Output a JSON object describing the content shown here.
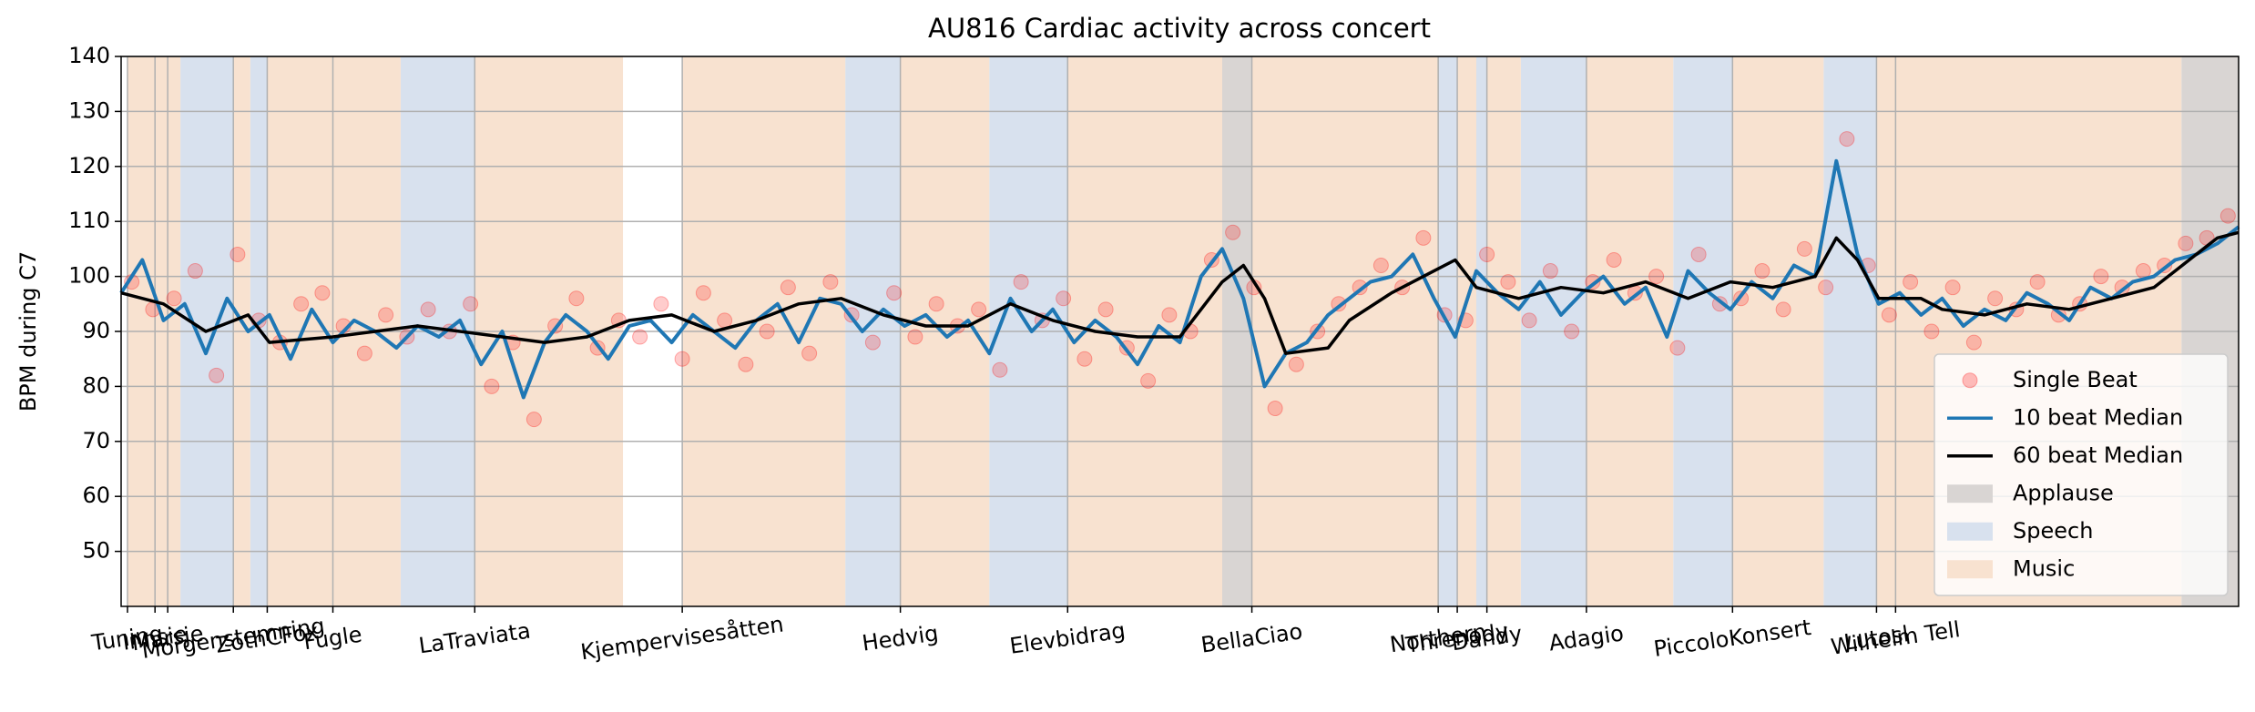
{
  "chart_data": {
    "type": "line",
    "title": "AU816 Cardiac activity across concert",
    "y_label": "BPM during C7",
    "xlim": [
      0,
      100
    ],
    "ylim": [
      40,
      140
    ],
    "yticks": [
      50,
      60,
      70,
      80,
      90,
      100,
      110,
      120,
      130,
      140
    ],
    "xticks": [
      {
        "value": 0.3,
        "label": "Tuning"
      },
      {
        "value": 1.6,
        "label": "Innsie"
      },
      {
        "value": 2.2,
        "label": "Marsje"
      },
      {
        "value": 5.3,
        "label": "Morgenstemning"
      },
      {
        "value": 6.9,
        "label": "ZothCFox"
      },
      {
        "value": 10.0,
        "label": "Fugle"
      },
      {
        "value": 16.7,
        "label": "LaTraviata"
      },
      {
        "value": 26.5,
        "label": "Kjempervisesåtten"
      },
      {
        "value": 36.8,
        "label": "Hedvig"
      },
      {
        "value": 44.7,
        "label": "Elevbidrag"
      },
      {
        "value": 53.4,
        "label": "BellaCiao"
      },
      {
        "value": 62.2,
        "label": "Northern"
      },
      {
        "value": 63.1,
        "label": "Threnody"
      },
      {
        "value": 64.5,
        "label": "Dandy"
      },
      {
        "value": 69.2,
        "label": "Adagio"
      },
      {
        "value": 76.1,
        "label": "PiccoloKonsert"
      },
      {
        "value": 82.9,
        "label": "Lutosl"
      },
      {
        "value": 83.8,
        "label": "Wilhelm Tell"
      }
    ],
    "grid": true,
    "legend_position": "lower right",
    "spans": [
      {
        "name": "Applause",
        "color": "#d9d5d3",
        "ranges": [
          [
            52.0,
            53.4
          ],
          [
            97.3,
            100
          ]
        ]
      },
      {
        "name": "Speech",
        "color": "#d8e1ee",
        "ranges": [
          [
            2.8,
            5.3
          ],
          [
            6.1,
            6.9
          ],
          [
            13.2,
            16.7
          ],
          [
            34.2,
            36.8
          ],
          [
            41.0,
            44.7
          ],
          [
            62.2,
            63.1
          ],
          [
            64.0,
            64.5
          ],
          [
            66.1,
            69.2
          ],
          [
            73.3,
            76.1
          ],
          [
            80.4,
            82.9
          ]
        ]
      },
      {
        "name": "Music",
        "color": "#f8e2d0",
        "ranges": [
          [
            0.3,
            1.6
          ],
          [
            1.6,
            2.8
          ],
          [
            5.3,
            6.1
          ],
          [
            6.9,
            13.2
          ],
          [
            16.7,
            23.7
          ],
          [
            26.5,
            34.2
          ],
          [
            36.8,
            41.0
          ],
          [
            44.7,
            52.0
          ],
          [
            53.4,
            62.2
          ],
          [
            63.1,
            64.0
          ],
          [
            64.5,
            66.1
          ],
          [
            69.2,
            73.3
          ],
          [
            76.1,
            80.4
          ],
          [
            82.9,
            97.3
          ]
        ]
      }
    ],
    "series": [
      {
        "name": "Single Beat",
        "type": "scatter",
        "color": "#ff0000",
        "x": [
          0.5,
          1.5,
          2.5,
          3.5,
          4.5,
          5.5,
          6.5,
          7.5,
          8.5,
          9.5,
          10.5,
          11.5,
          12.5,
          13.5,
          14.5,
          15.5,
          16.5,
          17.5,
          18.5,
          19.5,
          20.5,
          21.5,
          22.5,
          23.5,
          24.5,
          25.5,
          26.5,
          27.5,
          28.5,
          29.5,
          30.5,
          31.5,
          32.5,
          33.5,
          34.5,
          35.5,
          36.5,
          37.5,
          38.5,
          39.5,
          40.5,
          41.5,
          42.5,
          43.5,
          44.5,
          45.5,
          46.5,
          47.5,
          48.5,
          49.5,
          50.5,
          51.5,
          52.5,
          53.5,
          54.5,
          55.5,
          56.5,
          57.5,
          58.5,
          59.5,
          60.5,
          61.5,
          62.5,
          63.5,
          64.5,
          65.5,
          66.5,
          67.5,
          68.5,
          69.5,
          70.5,
          71.5,
          72.5,
          73.5,
          74.5,
          75.5,
          76.5,
          77.5,
          78.5,
          79.5,
          80.5,
          81.5,
          82.5,
          83.5,
          84.5,
          85.5,
          86.5,
          87.5,
          88.5,
          89.5,
          90.5,
          91.5,
          92.5,
          93.5,
          94.5,
          95.5,
          96.5,
          97.5,
          98.5,
          99.5
        ],
        "values": [
          99,
          94,
          96,
          101,
          82,
          104,
          92,
          88,
          95,
          97,
          91,
          86,
          93,
          89,
          94,
          90,
          95,
          80,
          88,
          74,
          91,
          96,
          87,
          92,
          89,
          95,
          85,
          97,
          92,
          84,
          90,
          98,
          86,
          99,
          93,
          88,
          97,
          89,
          95,
          91,
          94,
          83,
          99,
          92,
          96,
          85,
          94,
          87,
          81,
          93,
          90,
          103,
          108,
          98,
          76,
          84,
          90,
          95,
          98,
          102,
          98,
          107,
          93,
          92,
          104,
          99,
          92,
          101,
          90,
          99,
          103,
          97,
          100,
          87,
          104,
          95,
          96,
          101,
          94,
          105,
          98,
          125,
          102,
          93,
          99,
          90,
          98,
          88,
          96,
          94,
          99,
          93,
          95,
          100,
          98,
          101,
          102,
          106,
          107,
          111
        ]
      },
      {
        "name": "10 beat Median",
        "type": "line",
        "color": "#1f77b4",
        "x": [
          0,
          1,
          2,
          3,
          4,
          5,
          6,
          7,
          8,
          9,
          10,
          11,
          12,
          13,
          14,
          15,
          16,
          17,
          18,
          19,
          20,
          21,
          22,
          23,
          24,
          25,
          26,
          27,
          28,
          29,
          30,
          31,
          32,
          33,
          34,
          35,
          36,
          37,
          38,
          39,
          40,
          41,
          42,
          43,
          44,
          45,
          46,
          47,
          48,
          49,
          50,
          51,
          52,
          53,
          54,
          55,
          56,
          57,
          58,
          59,
          60,
          61,
          62,
          63,
          64,
          65,
          66,
          67,
          68,
          69,
          70,
          71,
          72,
          73,
          74,
          75,
          76,
          77,
          78,
          79,
          80,
          81,
          82,
          83,
          84,
          85,
          86,
          87,
          88,
          89,
          90,
          91,
          92,
          93,
          94,
          95,
          96,
          97,
          98,
          99,
          100
        ],
        "values": [
          97,
          103,
          92,
          95,
          86,
          96,
          90,
          93,
          85,
          94,
          88,
          92,
          90,
          87,
          91,
          89,
          92,
          84,
          90,
          78,
          88,
          93,
          90,
          85,
          91,
          92,
          88,
          93,
          90,
          87,
          92,
          95,
          88,
          96,
          95,
          90,
          94,
          91,
          93,
          89,
          92,
          86,
          96,
          90,
          94,
          88,
          92,
          89,
          84,
          91,
          88,
          100,
          105,
          96,
          80,
          86,
          88,
          93,
          96,
          99,
          100,
          104,
          96,
          89,
          101,
          97,
          94,
          99,
          93,
          97,
          100,
          95,
          98,
          89,
          101,
          97,
          94,
          99,
          96,
          102,
          100,
          121,
          104,
          95,
          97,
          93,
          96,
          91,
          94,
          92,
          97,
          95,
          92,
          98,
          96,
          99,
          100,
          103,
          104,
          106,
          109
        ]
      },
      {
        "name": "60 beat Median",
        "type": "line",
        "color": "#000000",
        "x": [
          0,
          2,
          4,
          6,
          7,
          10,
          12,
          14,
          16,
          18,
          20,
          22,
          24,
          26,
          28,
          30,
          32,
          34,
          36,
          38,
          40,
          42,
          44,
          46,
          48,
          50,
          52,
          53,
          54,
          55,
          57,
          58,
          60,
          62,
          63,
          64,
          66,
          68,
          70,
          72,
          74,
          76,
          78,
          80,
          81,
          82,
          83,
          85,
          86,
          88,
          90,
          92,
          94,
          96,
          97,
          98,
          99,
          100
        ],
        "values": [
          97,
          95,
          90,
          93,
          88,
          89,
          90,
          91,
          90,
          89,
          88,
          89,
          92,
          93,
          90,
          92,
          95,
          96,
          93,
          91,
          91,
          95,
          92,
          90,
          89,
          89,
          99,
          102,
          96,
          86,
          87,
          92,
          97,
          101,
          103,
          98,
          96,
          98,
          97,
          99,
          96,
          99,
          98,
          100,
          107,
          103,
          96,
          96,
          94,
          93,
          95,
          94,
          96,
          98,
          101,
          104,
          107,
          108
        ]
      }
    ]
  }
}
